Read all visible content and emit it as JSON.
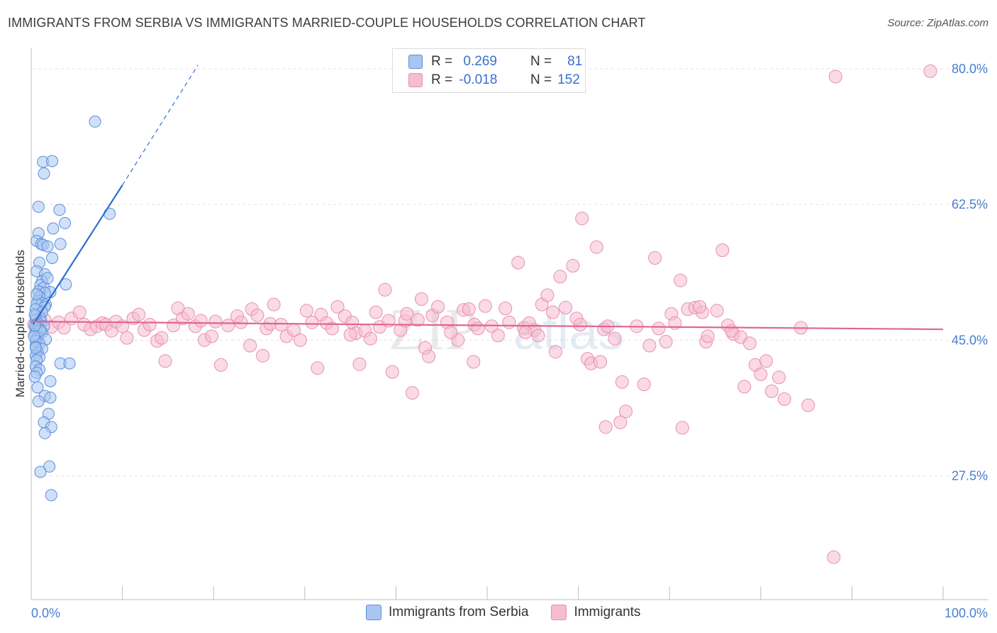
{
  "header": {
    "title": "IMMIGRANTS FROM SERBIA VS IMMIGRANTS MARRIED-COUPLE HOUSEHOLDS CORRELATION CHART",
    "source": "Source: ZipAtlas.com"
  },
  "legend": {
    "series1": {
      "r_label": "R =",
      "r_value": "0.269",
      "n_label": "N =",
      "n_value": "81"
    },
    "series2": {
      "r_label": "R =",
      "r_value": "-0.018",
      "n_label": "N =",
      "n_value": "152"
    }
  },
  "bottom_legend": {
    "series1": "Immigrants from Serbia",
    "series2": "Immigrants"
  },
  "watermark": {
    "zip": "ZIP",
    "atlas": "atlas"
  },
  "colors": {
    "blue_fill": "#a9c6f0",
    "blue_stroke": "#5b8fdc",
    "blue_line": "#2d6fd0",
    "pink_fill": "#f6bcd0",
    "pink_stroke": "#e890b0",
    "pink_line": "#e0658f",
    "axis_text": "#4a7fd0",
    "grid": "#e3e3e3"
  },
  "chart_data": {
    "type": "scatter",
    "title": "IMMIGRANTS FROM SERBIA VS IMMIGRANTS MARRIED-COUPLE HOUSEHOLDS CORRELATION CHART",
    "xlabel": "",
    "ylabel": "Married-couple Households",
    "xlim": [
      0,
      100
    ],
    "ylim": [
      12,
      82.5
    ],
    "x_tick_labels": [
      "0.0%",
      "100.0%"
    ],
    "y_ticks": [
      27.5,
      45.0,
      62.5,
      80.0
    ],
    "y_tick_labels": [
      "27.5%",
      "45.0%",
      "62.5%",
      "80.0%"
    ],
    "grid": true,
    "legend_position": "top-center",
    "series": [
      {
        "name": "Immigrants from Serbia",
        "r": 0.269,
        "n": 81,
        "trend": {
          "x": [
            0.2,
            10
          ],
          "y": [
            47.0,
            65.0
          ],
          "dashed_to": {
            "x": 18.3,
            "y": 80.5
          }
        },
        "points": [
          [
            7.0,
            73.2
          ],
          [
            1.3,
            68.0
          ],
          [
            2.3,
            68.1
          ],
          [
            1.4,
            66.5
          ],
          [
            0.8,
            62.2
          ],
          [
            3.1,
            61.8
          ],
          [
            8.6,
            61.3
          ],
          [
            3.7,
            60.1
          ],
          [
            2.4,
            59.4
          ],
          [
            0.8,
            58.8
          ],
          [
            0.6,
            57.8
          ],
          [
            1.1,
            57.4
          ],
          [
            1.3,
            57.3
          ],
          [
            3.2,
            57.4
          ],
          [
            1.8,
            57.1
          ],
          [
            2.3,
            55.6
          ],
          [
            0.9,
            55.0
          ],
          [
            0.6,
            53.9
          ],
          [
            1.5,
            53.5
          ],
          [
            1.2,
            52.6
          ],
          [
            3.8,
            52.2
          ],
          [
            1.0,
            52.1
          ],
          [
            1.4,
            51.8
          ],
          [
            0.8,
            51.3
          ],
          [
            2.1,
            51.2
          ],
          [
            1.5,
            51.1
          ],
          [
            0.9,
            50.6
          ],
          [
            0.8,
            50.1
          ],
          [
            1.2,
            49.8
          ],
          [
            1.6,
            49.6
          ],
          [
            0.6,
            49.7
          ],
          [
            1.5,
            49.3
          ],
          [
            0.5,
            49.0
          ],
          [
            1.2,
            48.6
          ],
          [
            0.5,
            48.1
          ],
          [
            1.0,
            47.8
          ],
          [
            0.5,
            47.6
          ],
          [
            1.1,
            47.4
          ],
          [
            0.7,
            47.2
          ],
          [
            0.6,
            47.0
          ],
          [
            1.4,
            46.8
          ],
          [
            0.5,
            46.6
          ],
          [
            0.9,
            46.4
          ],
          [
            0.6,
            46.2
          ],
          [
            1.2,
            46.0
          ],
          [
            0.4,
            45.8
          ],
          [
            0.7,
            45.4
          ],
          [
            1.6,
            45.1
          ],
          [
            0.5,
            44.9
          ],
          [
            0.9,
            44.5
          ],
          [
            0.5,
            44.2
          ],
          [
            1.2,
            43.9
          ],
          [
            0.7,
            43.4
          ],
          [
            0.5,
            43.0
          ],
          [
            0.9,
            42.8
          ],
          [
            0.6,
            42.4
          ],
          [
            3.2,
            42.0
          ],
          [
            4.2,
            42.0
          ],
          [
            0.5,
            41.6
          ],
          [
            0.9,
            41.2
          ],
          [
            0.6,
            40.8
          ],
          [
            0.4,
            40.3
          ],
          [
            2.1,
            39.7
          ],
          [
            0.7,
            38.9
          ],
          [
            1.5,
            37.8
          ],
          [
            2.1,
            37.6
          ],
          [
            0.8,
            37.1
          ],
          [
            1.9,
            35.5
          ],
          [
            1.4,
            34.4
          ],
          [
            2.2,
            33.8
          ],
          [
            1.5,
            33.0
          ],
          [
            2.0,
            28.7
          ],
          [
            1.0,
            28.0
          ],
          [
            2.2,
            25.0
          ],
          [
            0.5,
            44.0
          ],
          [
            0.4,
            48.3
          ],
          [
            0.6,
            50.9
          ],
          [
            1.0,
            46.2
          ],
          [
            0.3,
            45.5
          ],
          [
            0.4,
            46.9
          ],
          [
            1.8,
            53.0
          ]
        ]
      },
      {
        "name": "Immigrants",
        "r": -0.018,
        "n": 152,
        "trend": {
          "x": [
            0,
            100
          ],
          "y": [
            47.4,
            46.4
          ]
        },
        "points": [
          [
            0.3,
            47.0
          ],
          [
            0.8,
            47.2
          ],
          [
            1.5,
            47.6
          ],
          [
            2.2,
            46.7
          ],
          [
            3.0,
            47.3
          ],
          [
            3.6,
            46.6
          ],
          [
            4.4,
            47.8
          ],
          [
            5.3,
            48.6
          ],
          [
            5.8,
            47.0
          ],
          [
            6.5,
            46.4
          ],
          [
            7.2,
            46.8
          ],
          [
            7.8,
            47.2
          ],
          [
            8.2,
            47.0
          ],
          [
            8.8,
            46.2
          ],
          [
            9.3,
            47.4
          ],
          [
            10.0,
            46.8
          ],
          [
            10.5,
            45.3
          ],
          [
            11.2,
            47.8
          ],
          [
            11.8,
            48.3
          ],
          [
            12.4,
            46.3
          ],
          [
            13.0,
            47.0
          ],
          [
            13.8,
            44.9
          ],
          [
            14.3,
            45.3
          ],
          [
            14.7,
            42.3
          ],
          [
            15.6,
            46.9
          ],
          [
            16.1,
            49.1
          ],
          [
            16.6,
            47.8
          ],
          [
            17.2,
            48.4
          ],
          [
            18.0,
            46.8
          ],
          [
            18.6,
            47.5
          ],
          [
            19.0,
            45.0
          ],
          [
            19.8,
            45.5
          ],
          [
            20.2,
            47.4
          ],
          [
            20.8,
            41.8
          ],
          [
            21.6,
            46.9
          ],
          [
            22.6,
            48.1
          ],
          [
            23.0,
            47.3
          ],
          [
            24.2,
            49.0
          ],
          [
            24.8,
            48.2
          ],
          [
            25.4,
            43.0
          ],
          [
            25.8,
            46.5
          ],
          [
            26.2,
            47.1
          ],
          [
            26.6,
            49.6
          ],
          [
            27.4,
            47.0
          ],
          [
            28.0,
            45.5
          ],
          [
            28.8,
            46.3
          ],
          [
            29.5,
            45.0
          ],
          [
            30.2,
            48.8
          ],
          [
            30.8,
            47.3
          ],
          [
            31.4,
            41.4
          ],
          [
            31.8,
            48.3
          ],
          [
            32.4,
            47.2
          ],
          [
            33.0,
            46.5
          ],
          [
            33.6,
            49.3
          ],
          [
            34.4,
            48.1
          ],
          [
            35.2,
            47.3
          ],
          [
            35.6,
            45.9
          ],
          [
            36.0,
            41.9
          ],
          [
            36.6,
            46.2
          ],
          [
            37.2,
            45.2
          ],
          [
            37.8,
            48.6
          ],
          [
            38.2,
            46.7
          ],
          [
            38.8,
            51.5
          ],
          [
            39.2,
            47.5
          ],
          [
            39.6,
            40.9
          ],
          [
            40.5,
            46.3
          ],
          [
            41.0,
            47.5
          ],
          [
            41.2,
            48.4
          ],
          [
            41.8,
            38.2
          ],
          [
            42.4,
            47.6
          ],
          [
            43.2,
            44.0
          ],
          [
            43.6,
            42.9
          ],
          [
            44.0,
            48.2
          ],
          [
            44.6,
            49.3
          ],
          [
            45.6,
            47.3
          ],
          [
            46.8,
            45.0
          ],
          [
            47.4,
            48.9
          ],
          [
            48.0,
            49.0
          ],
          [
            48.6,
            47.0
          ],
          [
            49.0,
            46.5
          ],
          [
            49.8,
            49.4
          ],
          [
            50.5,
            46.8
          ],
          [
            51.2,
            45.6
          ],
          [
            52.0,
            49.1
          ],
          [
            52.4,
            47.3
          ],
          [
            53.4,
            55.0
          ],
          [
            54.0,
            46.6
          ],
          [
            54.6,
            47.2
          ],
          [
            55.2,
            46.3
          ],
          [
            55.6,
            45.6
          ],
          [
            56.0,
            49.6
          ],
          [
            56.6,
            50.8
          ],
          [
            57.2,
            48.6
          ],
          [
            58.0,
            53.2
          ],
          [
            58.6,
            49.2
          ],
          [
            59.4,
            54.6
          ],
          [
            59.8,
            47.8
          ],
          [
            60.2,
            47.0
          ],
          [
            60.4,
            60.7
          ],
          [
            61.0,
            42.6
          ],
          [
            61.4,
            42.0
          ],
          [
            62.0,
            57.0
          ],
          [
            62.8,
            46.4
          ],
          [
            63.2,
            46.8
          ],
          [
            64.0,
            45.2
          ],
          [
            64.8,
            39.6
          ],
          [
            65.2,
            35.8
          ],
          [
            66.4,
            46.8
          ],
          [
            67.2,
            39.3
          ],
          [
            67.8,
            44.3
          ],
          [
            68.4,
            55.6
          ],
          [
            68.8,
            46.5
          ],
          [
            69.6,
            44.8
          ],
          [
            70.2,
            48.4
          ],
          [
            70.6,
            47.2
          ],
          [
            71.2,
            52.7
          ],
          [
            72.0,
            49.0
          ],
          [
            72.8,
            49.2
          ],
          [
            73.6,
            48.6
          ],
          [
            74.0,
            44.8
          ],
          [
            75.2,
            48.8
          ],
          [
            75.8,
            56.6
          ],
          [
            76.4,
            46.9
          ],
          [
            77.0,
            45.8
          ],
          [
            77.8,
            45.4
          ],
          [
            78.2,
            39.0
          ],
          [
            78.8,
            44.6
          ],
          [
            79.4,
            41.8
          ],
          [
            80.0,
            40.6
          ],
          [
            80.6,
            42.3
          ],
          [
            81.2,
            38.4
          ],
          [
            82.0,
            40.2
          ],
          [
            82.6,
            37.4
          ],
          [
            84.4,
            46.6
          ],
          [
            85.2,
            36.6
          ],
          [
            88.2,
            79.0
          ],
          [
            88.0,
            17.0
          ],
          [
            98.6,
            79.7
          ],
          [
            71.4,
            33.7
          ],
          [
            62.4,
            42.2
          ],
          [
            63.0,
            33.8
          ],
          [
            74.2,
            45.5
          ],
          [
            76.8,
            46.2
          ],
          [
            64.6,
            34.4
          ],
          [
            73.3,
            49.3
          ],
          [
            46.0,
            46.0
          ],
          [
            42.8,
            50.3
          ],
          [
            48.5,
            42.2
          ],
          [
            57.5,
            43.5
          ],
          [
            54.2,
            46.0
          ],
          [
            35.0,
            45.7
          ],
          [
            24.0,
            44.3
          ]
        ]
      }
    ]
  }
}
